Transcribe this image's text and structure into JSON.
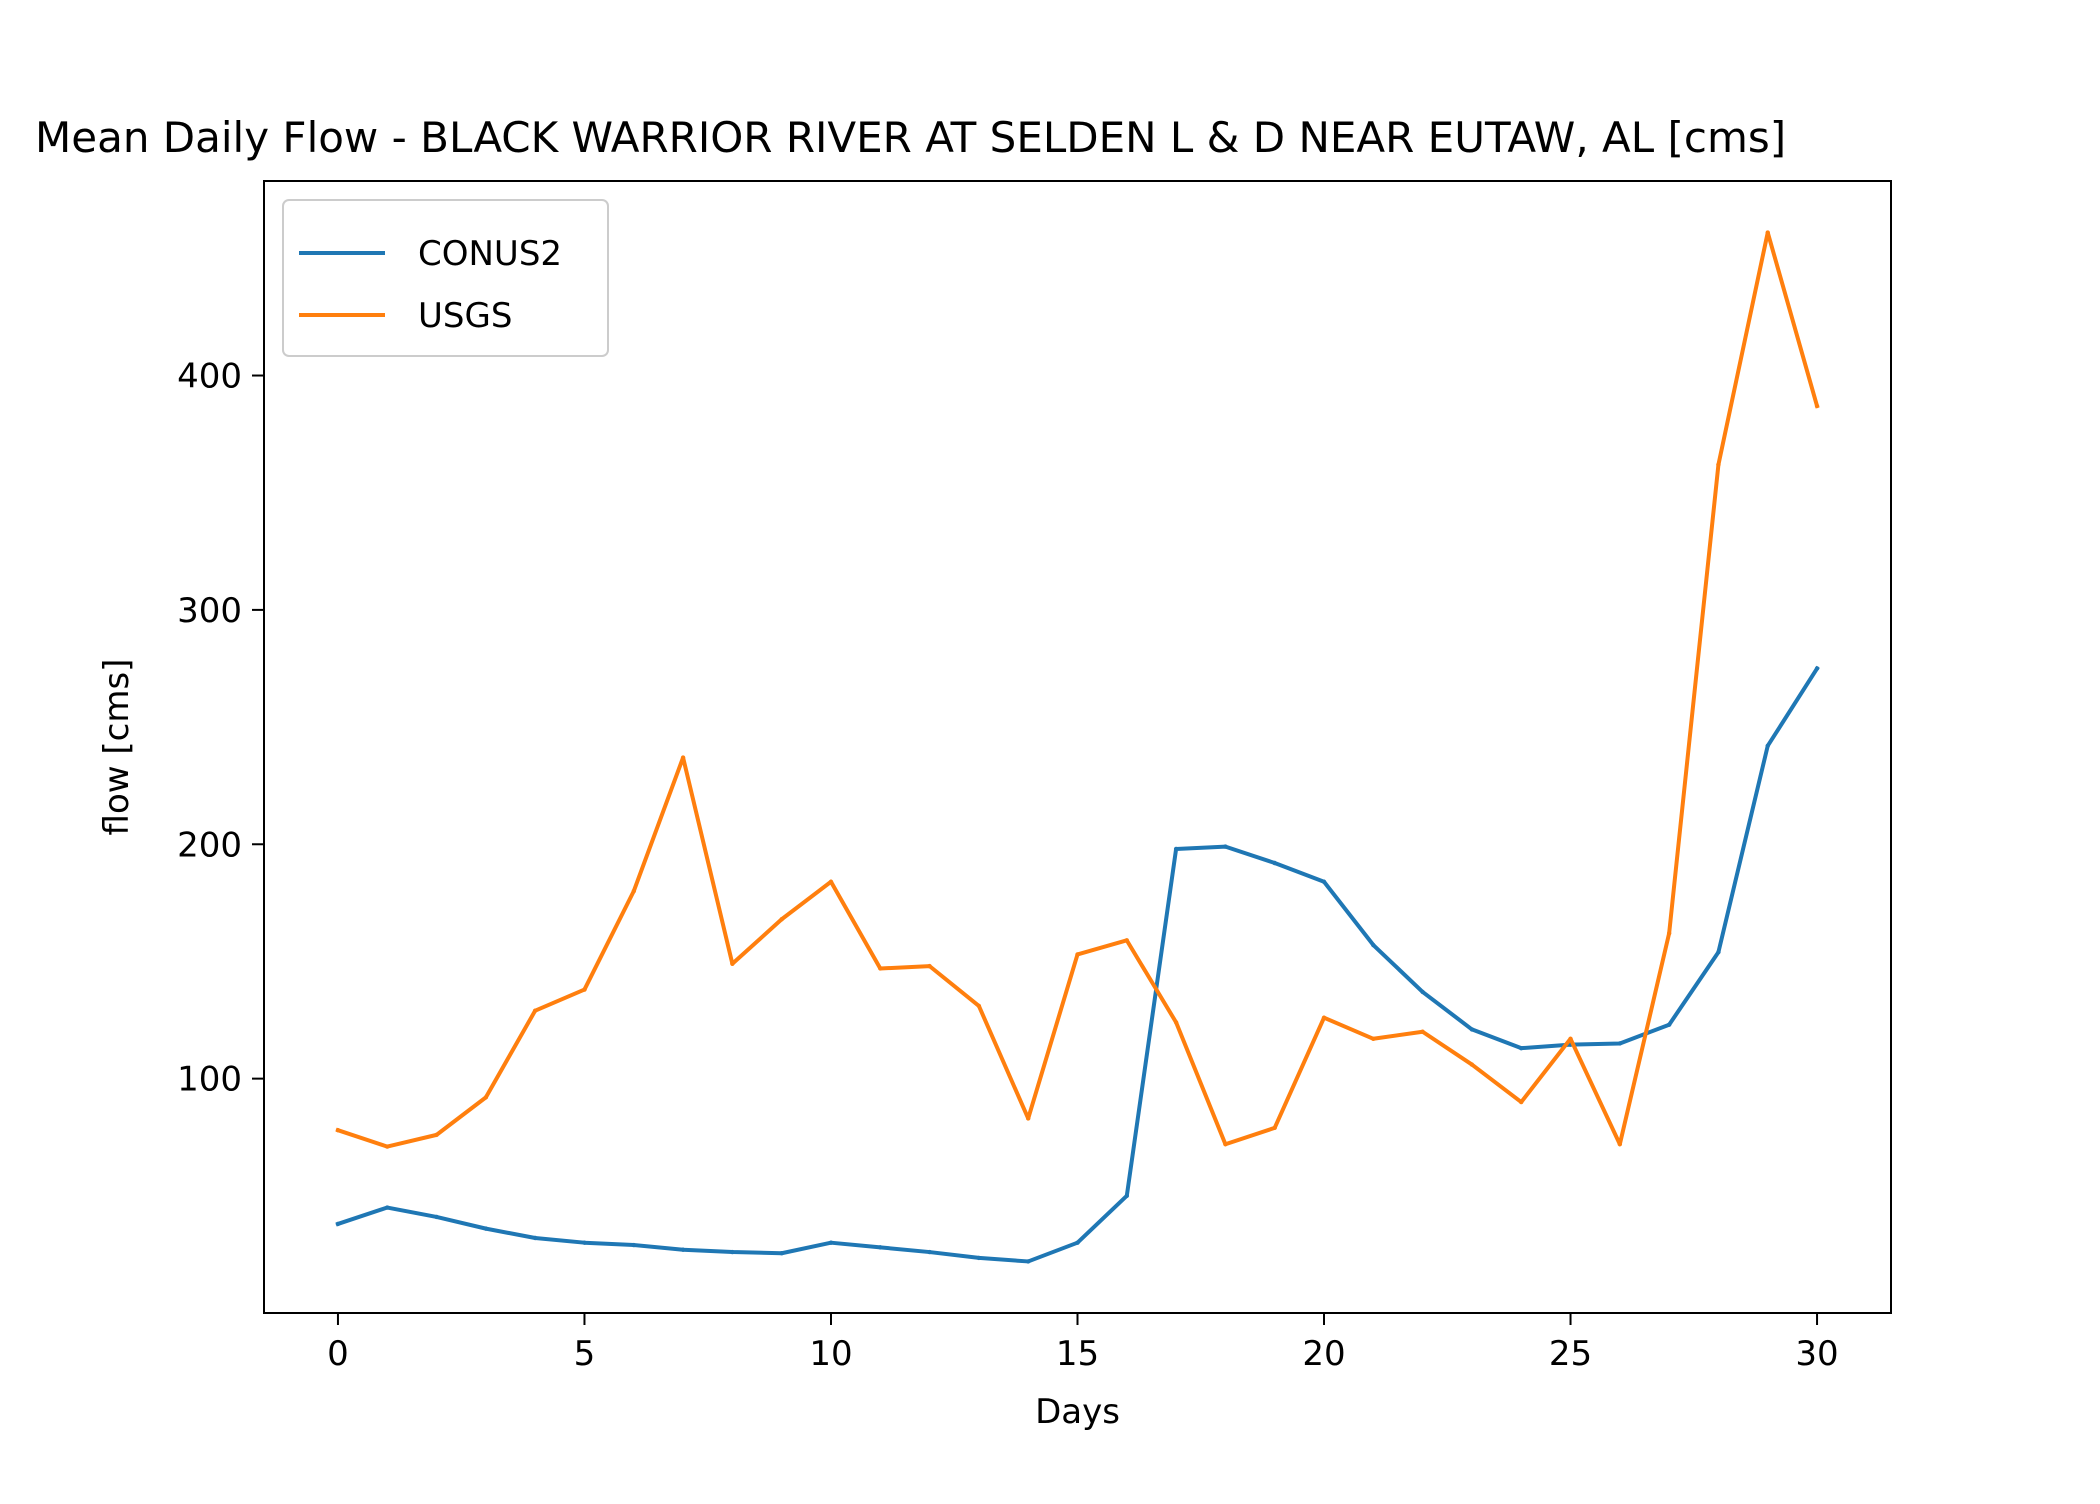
{
  "chart_data": {
    "type": "line",
    "title": "Mean Daily Flow - BLACK WARRIOR RIVER AT SELDEN L & D NEAR EUTAW, AL [cms]",
    "xlabel": "Days",
    "ylabel": "flow [cms]",
    "xlim": [
      -1.5,
      31.5
    ],
    "ylim": [
      0,
      483
    ],
    "xticks": [
      0,
      5,
      10,
      15,
      20,
      25,
      30
    ],
    "yticks": [
      100,
      200,
      300,
      400
    ],
    "grid": false,
    "legend": "upper-left",
    "x": [
      0,
      1,
      2,
      3,
      4,
      5,
      6,
      7,
      8,
      9,
      10,
      11,
      12,
      13,
      14,
      15,
      16,
      17,
      18,
      19,
      20,
      21,
      22,
      23,
      24,
      25,
      26,
      27,
      28,
      29,
      30
    ],
    "series": [
      {
        "name": "CONUS2",
        "color": "#1f77b4",
        "values": [
          38,
          45,
          41,
          36,
          32,
          30,
          29,
          27,
          26,
          25.5,
          30,
          28,
          26,
          23.5,
          22,
          30,
          50,
          198,
          199,
          192,
          184,
          157,
          137,
          121,
          113,
          114.5,
          115,
          123,
          154,
          242,
          275
        ]
      },
      {
        "name": "USGS",
        "color": "#ff7f0e",
        "values": [
          78,
          71,
          76,
          92,
          129,
          138,
          180,
          237,
          149,
          168,
          184,
          147,
          148,
          131,
          83,
          153,
          159,
          124,
          72,
          79,
          126,
          117,
          120,
          106,
          90,
          117,
          72,
          162,
          362,
          461,
          387
        ]
      }
    ]
  }
}
